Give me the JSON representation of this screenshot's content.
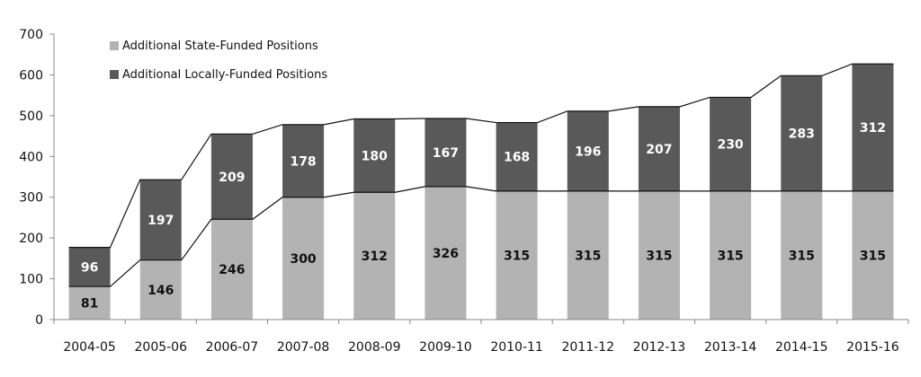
{
  "chart_data": {
    "type": "bar",
    "stacked": true,
    "categories": [
      "2004-05",
      "2005-06",
      "2006-07",
      "2007-08",
      "2008-09",
      "2009-10",
      "2010-11",
      "2011-12",
      "2012-13",
      "2013-14",
      "2014-15",
      "2015-16"
    ],
    "series": [
      {
        "name": "Additional State-Funded Positions",
        "color": "#b3b3b3",
        "label_color": "#111111",
        "values": [
          81,
          146,
          246,
          300,
          312,
          326,
          315,
          315,
          315,
          315,
          315,
          315
        ]
      },
      {
        "name": "Additional Locally-Funded Positions",
        "color": "#595959",
        "label_color": "#ffffff",
        "values": [
          96,
          197,
          209,
          178,
          180,
          167,
          168,
          196,
          207,
          230,
          283,
          312
        ]
      }
    ],
    "ylim": [
      0,
      700
    ],
    "yticks": [
      0,
      100,
      200,
      300,
      400,
      500,
      600,
      700
    ],
    "grid": false,
    "legend_position": "top-left",
    "connector_lines": true,
    "line_color": "#111111"
  }
}
